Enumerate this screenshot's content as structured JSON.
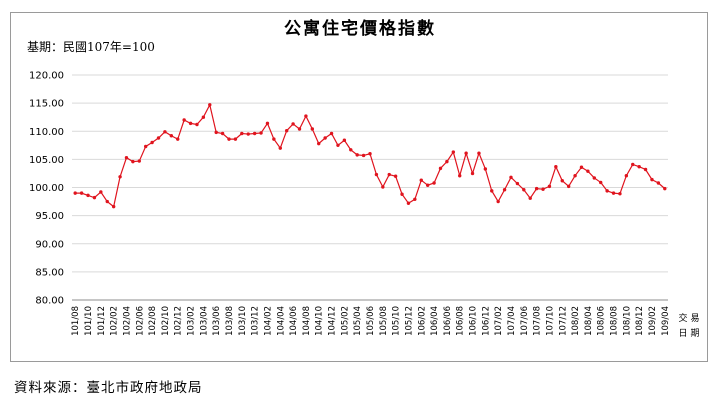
{
  "chart_data": {
    "type": "line",
    "title": "公寓住宅價格指數",
    "base_note": "基期：民國107年=100",
    "source": "資料來源：臺北市政府地政局",
    "xlabel_chars": [
      "交",
      "易",
      "日",
      "期"
    ],
    "ylim": [
      80,
      120
    ],
    "y_ticks": [
      "80.00",
      "85.00",
      "90.00",
      "95.00",
      "100.00",
      "105.00",
      "110.00",
      "115.00",
      "120.00"
    ],
    "grid": "horizontal",
    "legend": "none",
    "line_color": "#e0141e",
    "grid_color": "#d9d9d9",
    "x": [
      "101/08",
      "101/09",
      "101/10",
      "101/11",
      "101/12",
      "102/01",
      "102/02",
      "102/03",
      "102/04",
      "102/05",
      "102/06",
      "102/07",
      "102/08",
      "102/09",
      "102/10",
      "102/11",
      "102/12",
      "103/01",
      "103/02",
      "103/03",
      "103/04",
      "103/05",
      "103/06",
      "103/07",
      "103/08",
      "103/09",
      "103/10",
      "103/11",
      "103/12",
      "104/01",
      "104/02",
      "104/03",
      "104/04",
      "104/05",
      "104/06",
      "104/07",
      "104/08",
      "104/09",
      "104/10",
      "104/11",
      "104/12",
      "105/01",
      "105/02",
      "105/03",
      "105/04",
      "105/05",
      "105/06",
      "105/07",
      "105/08",
      "105/09",
      "105/10",
      "105/11",
      "105/12",
      "106/01",
      "106/02",
      "106/03",
      "106/04",
      "106/05",
      "106/06",
      "106/07",
      "106/08",
      "106/09",
      "106/10",
      "106/11",
      "106/12",
      "107/01",
      "107/02",
      "107/03",
      "107/04",
      "107/05",
      "107/06",
      "107/07",
      "107/08",
      "107/09",
      "107/10",
      "107/11",
      "107/12",
      "108/01",
      "108/02",
      "108/03",
      "108/04",
      "108/05",
      "108/06",
      "108/07",
      "108/08",
      "108/09",
      "108/10",
      "108/11",
      "108/12",
      "109/01",
      "109/02",
      "109/03",
      "109/04"
    ],
    "x_tick_labels": [
      "101/08",
      "101/10",
      "101/12",
      "102/02",
      "102/04",
      "102/06",
      "102/08",
      "102/10",
      "102/12",
      "103/02",
      "103/04",
      "103/06",
      "103/08",
      "103/10",
      "103/12",
      "104/02",
      "104/04",
      "104/06",
      "104/08",
      "104/10",
      "104/12",
      "105/02",
      "105/04",
      "105/06",
      "105/08",
      "105/10",
      "105/12",
      "106/02",
      "106/04",
      "106/06",
      "106/08",
      "106/10",
      "106/12",
      "107/02",
      "107/04",
      "107/06",
      "107/08",
      "107/10",
      "107/12",
      "108/02",
      "108/04",
      "108/06",
      "108/08",
      "108/10",
      "108/12",
      "109/02",
      "109/04"
    ],
    "values": [
      99.0,
      99.0,
      98.6,
      98.2,
      99.2,
      97.5,
      96.6,
      101.9,
      105.3,
      104.6,
      104.7,
      107.3,
      108.0,
      108.8,
      109.9,
      109.2,
      108.6,
      112.0,
      111.4,
      111.2,
      112.5,
      114.7,
      109.8,
      109.6,
      108.6,
      108.6,
      109.6,
      109.5,
      109.6,
      109.7,
      111.4,
      108.6,
      107.0,
      110.1,
      111.3,
      110.4,
      112.7,
      110.4,
      107.8,
      108.8,
      109.6,
      107.5,
      108.4,
      106.7,
      105.8,
      105.7,
      106.0,
      102.3,
      100.1,
      102.3,
      102.0,
      98.8,
      97.2,
      97.9,
      101.3,
      100.4,
      100.8,
      103.4,
      104.6,
      106.3,
      102.1,
      106.1,
      102.5,
      106.1,
      103.3,
      99.4,
      97.5,
      99.6,
      101.8,
      100.7,
      99.6,
      98.1,
      99.8,
      99.7,
      100.2,
      103.7,
      101.2,
      100.2,
      102.1,
      103.6,
      102.9,
      101.7,
      100.9,
      99.4,
      99.0,
      98.9,
      102.1,
      104.1,
      103.7,
      103.2,
      101.4,
      100.8,
      99.8
    ]
  }
}
